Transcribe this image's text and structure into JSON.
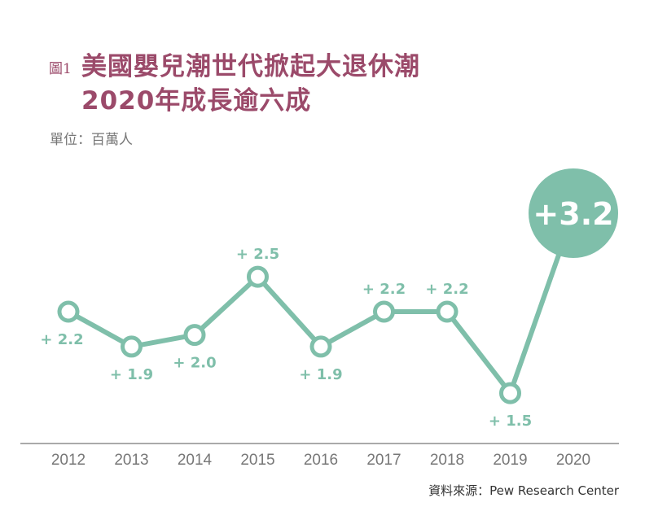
{
  "header": {
    "figure_label": "圖1",
    "title_line1": "美國嬰兒潮世代掀起大退休潮",
    "title_line2": "2020年成長逾六成",
    "unit": "單位：百萬人"
  },
  "footer": {
    "source": "資料來源：Pew Research Center"
  },
  "colors": {
    "title": "#9b4a6a",
    "line": "#7fbfaa",
    "axis_text": "#777777"
  },
  "chart_data": {
    "type": "line",
    "title": "美國嬰兒潮世代掀起大退休潮 2020年成長逾六成",
    "ylabel": "單位：百萬人",
    "xlabel": "",
    "categories": [
      "2012",
      "2013",
      "2014",
      "2015",
      "2016",
      "2017",
      "2018",
      "2019",
      "2020"
    ],
    "values": [
      2.2,
      1.9,
      2.0,
      2.5,
      1.9,
      2.2,
      2.2,
      1.5,
      3.2
    ],
    "data_labels": [
      "+ 2.2",
      "+ 1.9",
      "+ 2.0",
      "+ 2.5",
      "+ 1.9",
      "+ 2.2",
      "+ 2.2",
      "+ 1.5",
      "+3.2"
    ],
    "grid": false,
    "highlight": "2020"
  }
}
